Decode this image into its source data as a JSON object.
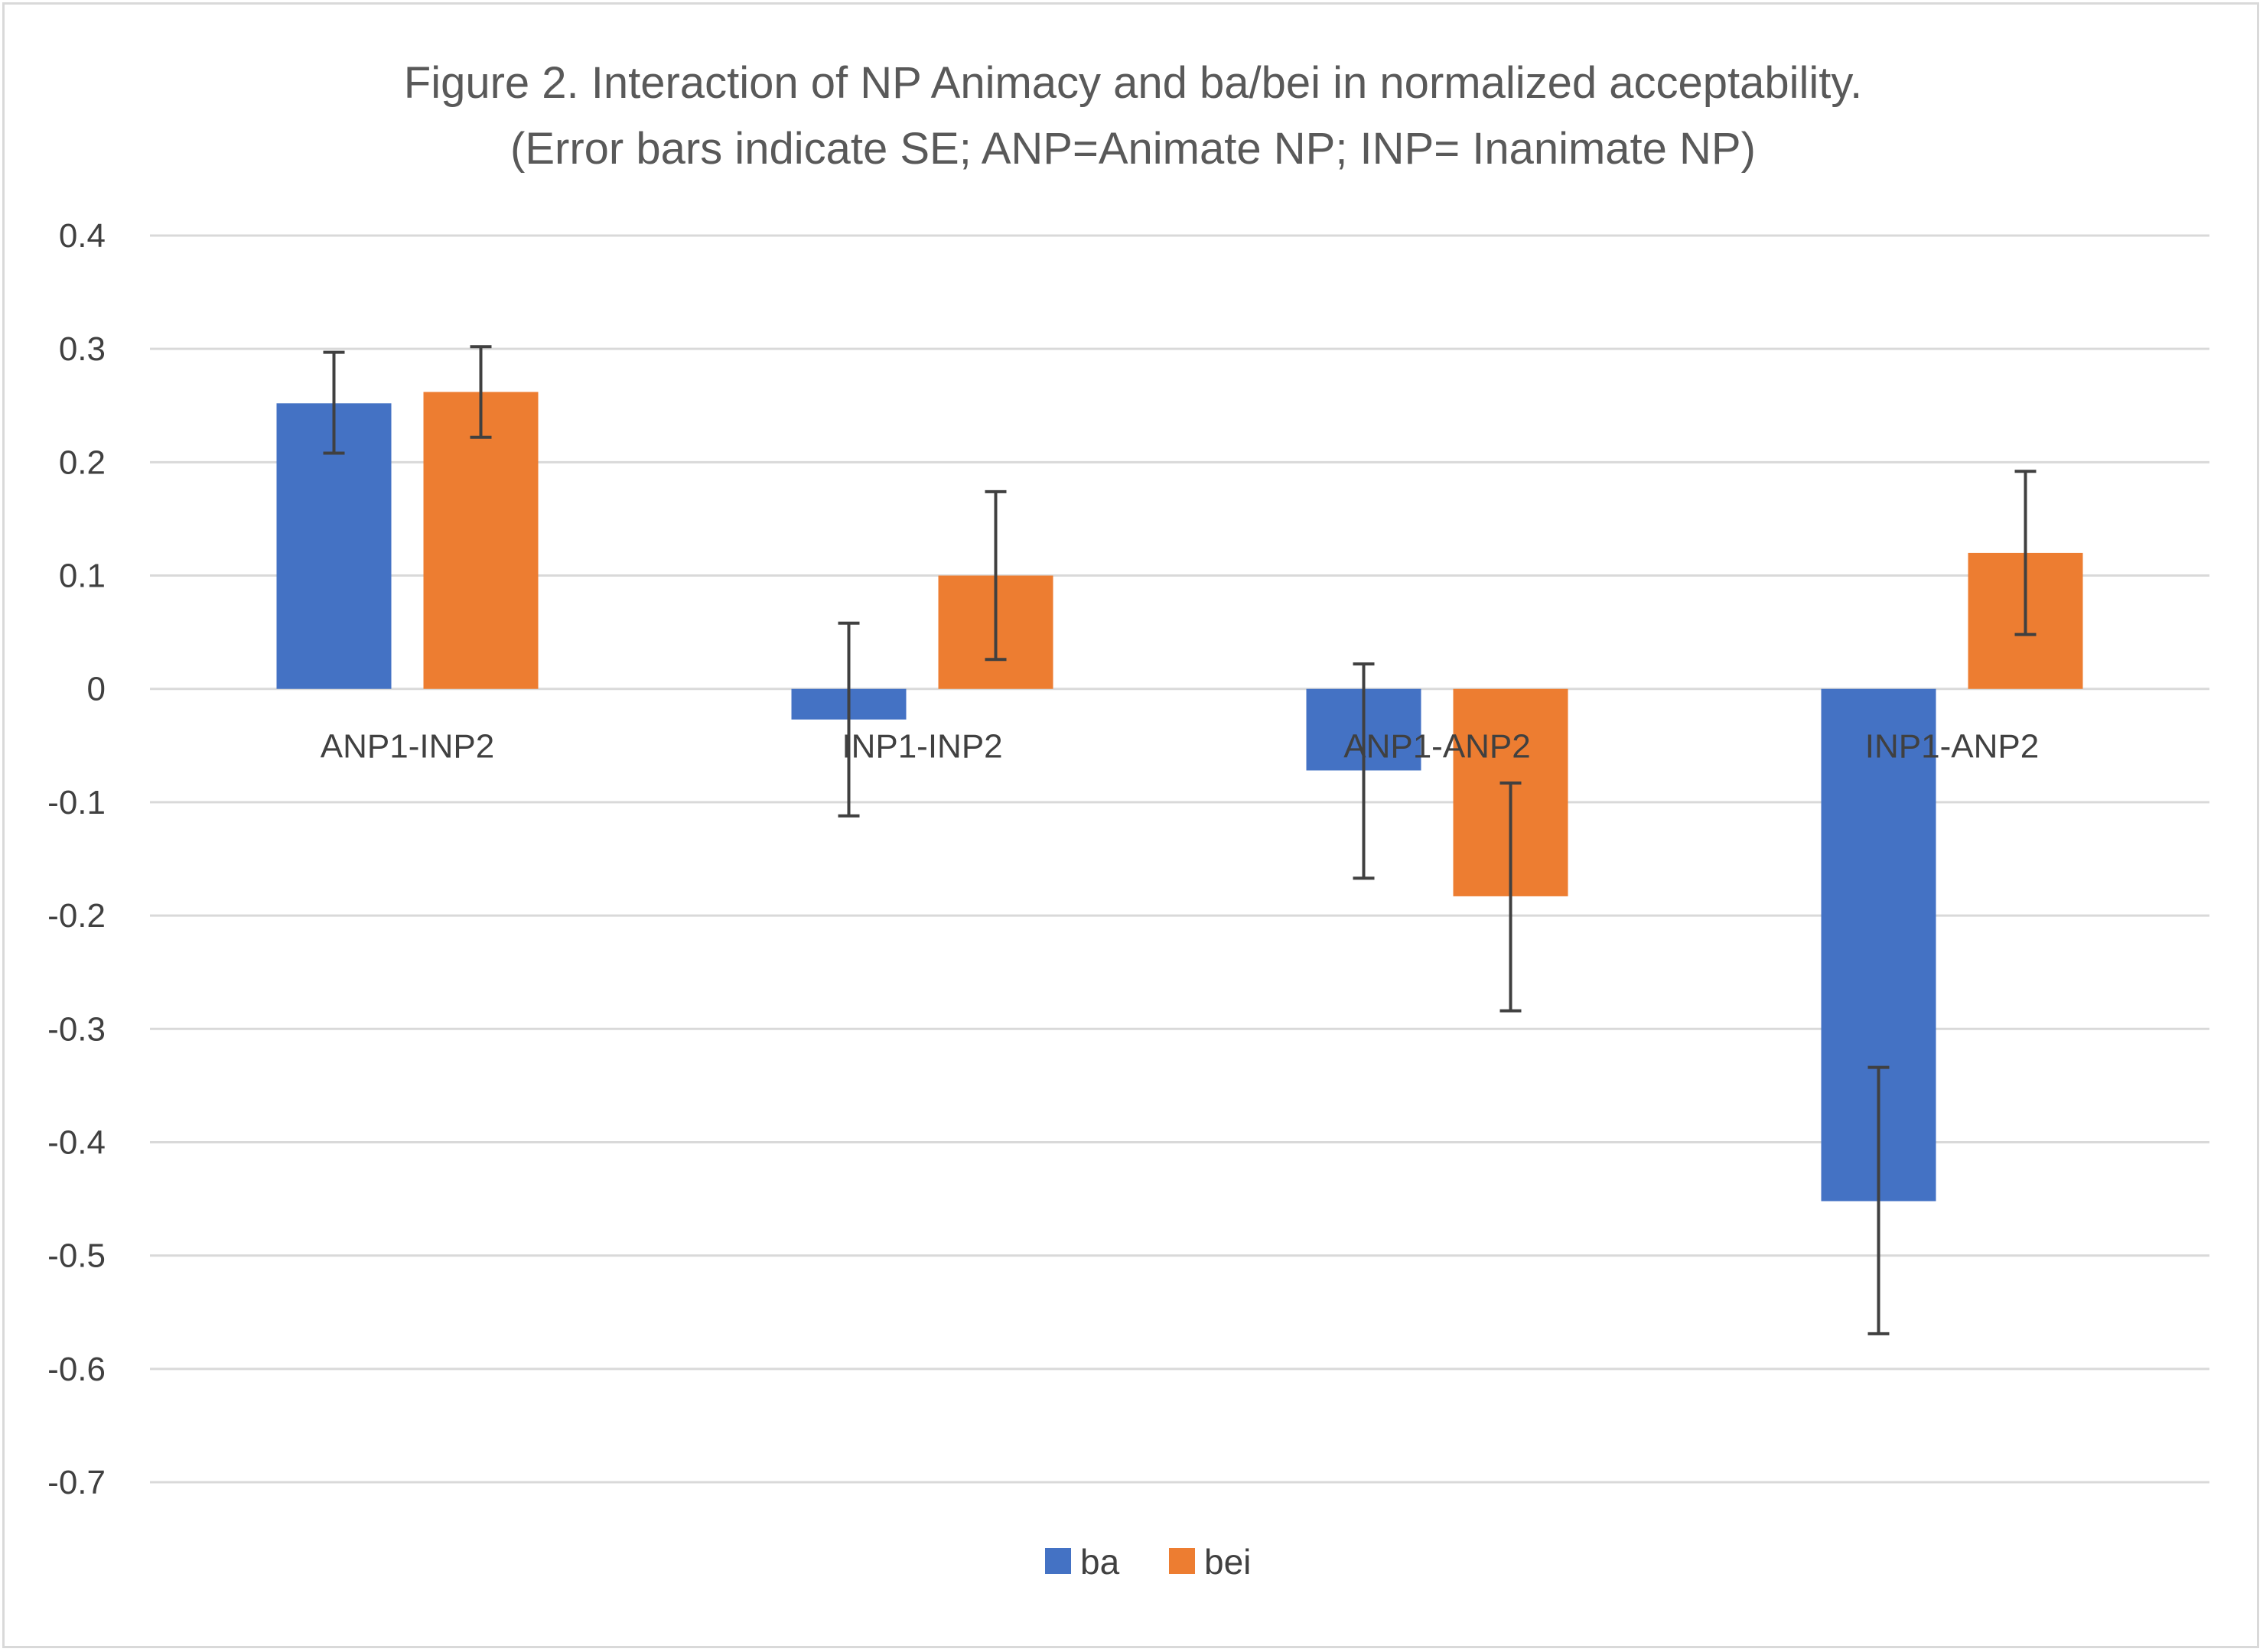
{
  "chart_data": {
    "type": "bar",
    "title": "Figure 2.  Interaction of NP Animacy and ba/bei in normalized acceptability.",
    "subtitle": "(Error bars indicate SE; ANP=Animate NP; INP= Inanimate NP)",
    "xlabel": "",
    "ylabel": "",
    "categories": [
      "ANP1-INP2",
      "INP1-INP2",
      "ANP1-ANP2",
      "INP1-ANP2"
    ],
    "series": [
      {
        "name": "ba",
        "color": "#4472c4",
        "values": [
          0.252,
          -0.027,
          -0.072,
          -0.452
        ],
        "error_low": [
          0.208,
          -0.112,
          -0.167,
          -0.569
        ],
        "error_high": [
          0.297,
          0.058,
          0.022,
          -0.334
        ]
      },
      {
        "name": "bei",
        "color": "#ed7d31",
        "values": [
          0.262,
          0.1,
          -0.183,
          0.12
        ],
        "error_low": [
          0.222,
          0.026,
          -0.284,
          0.048
        ],
        "error_high": [
          0.302,
          0.174,
          -0.083,
          0.192
        ]
      }
    ],
    "ylim": [
      -0.7,
      0.4
    ],
    "yticks": [
      "0.4",
      "0.3",
      "0.2",
      "0.1",
      "0",
      "-0.1",
      "-0.2",
      "-0.3",
      "-0.4",
      "-0.5",
      "-0.6",
      "-0.7"
    ],
    "ytick_values": [
      0.4,
      0.3,
      0.2,
      0.1,
      0,
      -0.1,
      -0.2,
      -0.3,
      -0.4,
      -0.5,
      -0.6,
      -0.7
    ],
    "grid": true,
    "legend": "bottom-center"
  }
}
